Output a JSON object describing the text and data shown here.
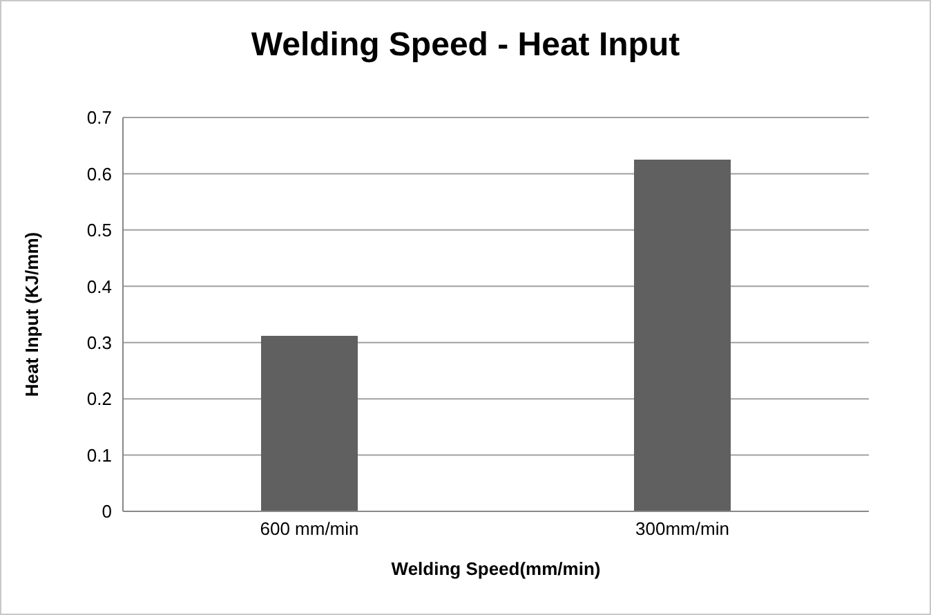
{
  "chart_data": {
    "type": "bar",
    "title": "Welding Speed - Heat Input",
    "xlabel": "Welding Speed(mm/min)",
    "ylabel": "Heat Input (KJ/mm)",
    "categories": [
      "600 mm/min",
      "300mm/min"
    ],
    "values": [
      0.312,
      0.625
    ],
    "color": "#606060",
    "ylim": [
      0,
      0.7
    ],
    "yticks": [
      0,
      0.1,
      0.2,
      0.3,
      0.4,
      0.5,
      0.6,
      0.7
    ],
    "grid": "y"
  }
}
